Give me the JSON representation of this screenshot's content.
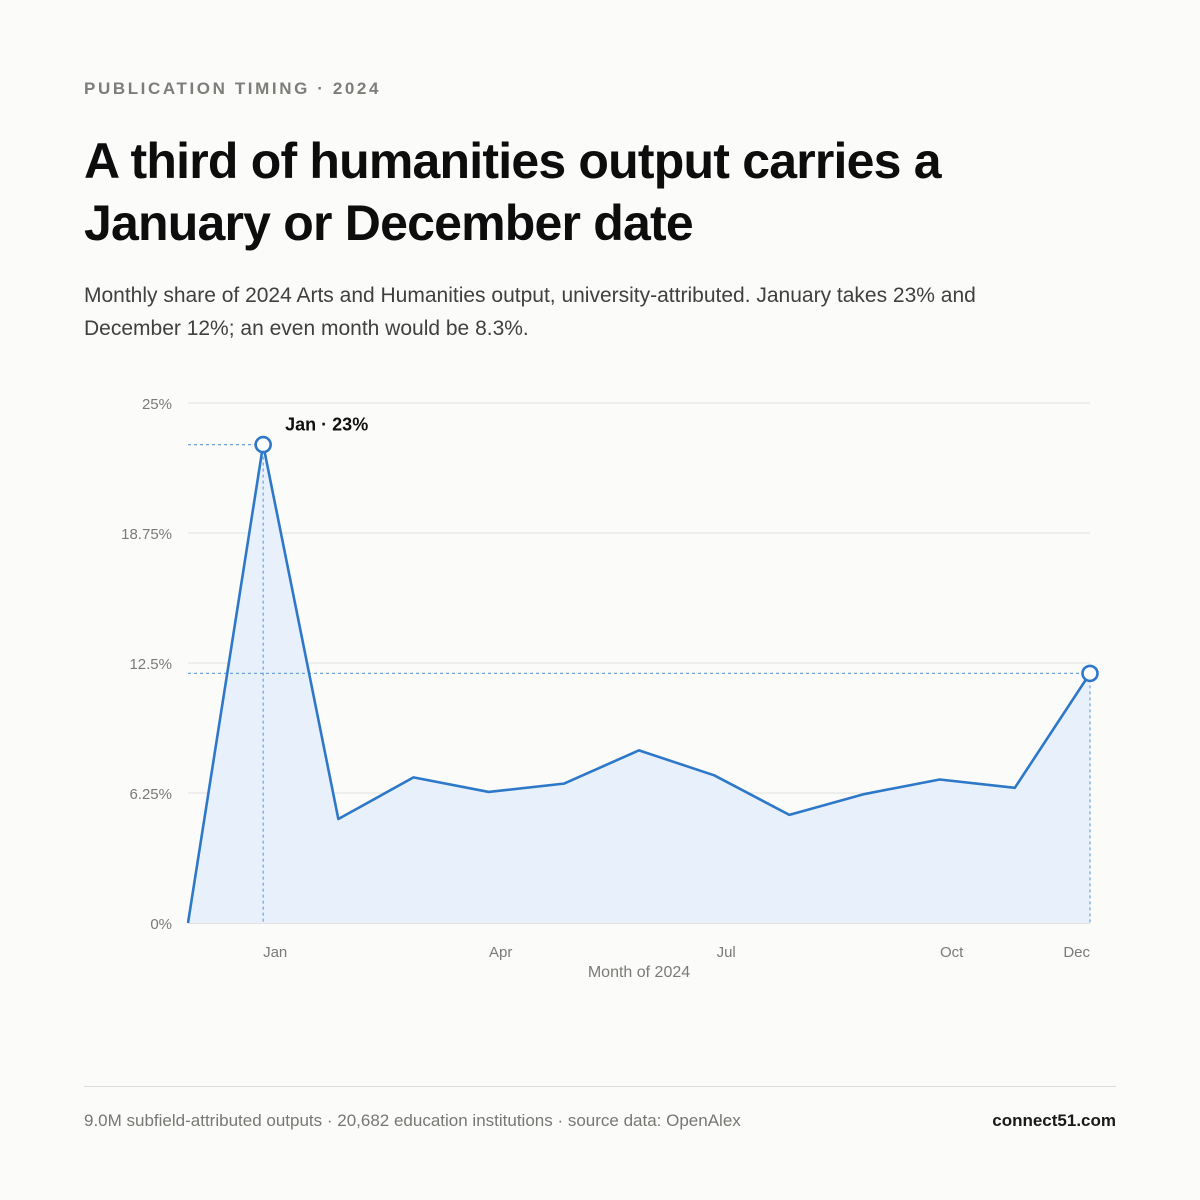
{
  "header": {
    "kicker": "PUBLICATION TIMING · 2024",
    "title": "A third of humanities output carries a January or December date",
    "subtitle": "Monthly share of 2024 Arts and Humanities output, university-attributed. January takes 23% and December 12%; an even month would be 8.3%."
  },
  "chart_data": {
    "type": "area",
    "x": [
      "2023-12",
      "2024-01",
      "2024-02",
      "2024-03",
      "2024-04",
      "2024-05",
      "2024-06",
      "2024-07",
      "2024-08",
      "2024-09",
      "2024-10",
      "2024-11",
      "2024-12"
    ],
    "x_tick_labels": [
      {
        "x": "2024-01",
        "label": "Jan"
      },
      {
        "x": "2024-04",
        "label": "Apr"
      },
      {
        "x": "2024-07",
        "label": "Jul"
      },
      {
        "x": "2024-10",
        "label": "Oct"
      },
      {
        "x": "2024-12",
        "label": "Dec"
      }
    ],
    "series": [
      {
        "values": [
          0,
          23,
          5,
          7,
          6.3,
          6.7,
          8.3,
          7.1,
          5.2,
          6.2,
          6.9,
          6.5,
          12
        ]
      }
    ],
    "xlabel": "Month of 2024",
    "ylabel": "",
    "ylim": [
      0,
      25
    ],
    "y_ticks": [
      0,
      6.25,
      12.5,
      18.75,
      25
    ],
    "y_tick_labels": [
      "0%",
      "6.25%",
      "12.5%",
      "18.75%",
      "25%"
    ],
    "grid": true,
    "highlights": [
      {
        "x": "2024-01",
        "value": 23,
        "label": "Jan · 23%"
      },
      {
        "x": "2024-12",
        "value": 12
      }
    ],
    "colors": {
      "line": "#2e78c9",
      "fill": "#e8f1fb",
      "grid": "#e6e6e3",
      "guide": "#6fa3db",
      "tick_text": "#7a7a77"
    }
  },
  "footer": {
    "source": "9.0M subfield-attributed outputs · 20,682 education institutions · source data: OpenAlex",
    "brand": "connect51.com"
  }
}
